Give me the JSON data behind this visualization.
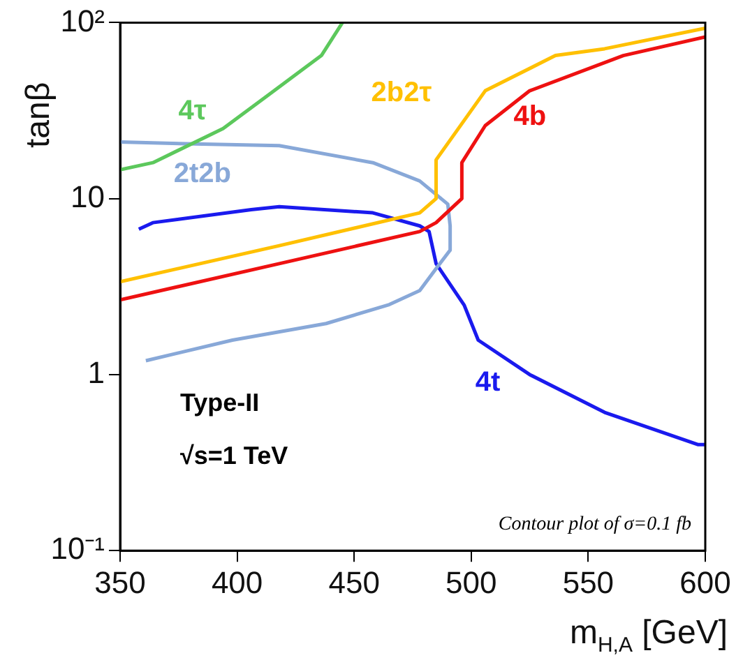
{
  "chart_data": {
    "type": "line",
    "xlabel": "m$_{H,A}$ [GeV]",
    "ylabel": "tanβ",
    "log": "y",
    "xlim": [
      350,
      600
    ],
    "ylim": [
      0.1,
      100
    ],
    "xticks": [
      350,
      400,
      450,
      500,
      550,
      600
    ],
    "yticks": [
      {
        "value": 0.1,
        "label": "10⁻¹"
      },
      1,
      10,
      {
        "value": 100,
        "label": "10²"
      }
    ],
    "grid": false,
    "legend": false,
    "marker": "none",
    "line_style": "solid",
    "annotations": [
      "Type-II",
      "√s=1 TeV",
      "Contour plot of σ=0.1 fb"
    ],
    "series": [
      {
        "name": "4τ",
        "color": "#5cc85c",
        "x": [
          350,
          364,
          394,
          412,
          436,
          445
        ],
        "values": [
          14.6,
          16,
          25,
          37.6,
          65,
          100
        ]
      },
      {
        "name": "2b2τ",
        "color": "#ffc000",
        "x": [
          350,
          418,
          478,
          485,
          485,
          506,
          536,
          557,
          600
        ],
        "values": [
          3.37,
          5.4,
          8.3,
          10,
          16.6,
          41,
          65,
          71,
          93
        ]
      },
      {
        "name": "4b",
        "color": "#ee1111",
        "x": [
          350,
          418,
          478,
          485,
          496,
          496,
          506,
          525,
          565,
          600
        ],
        "values": [
          2.66,
          4.27,
          6.5,
          7.3,
          10,
          16,
          26,
          41,
          65,
          83
        ]
      },
      {
        "name": "2t2b",
        "color": "#88a8d8",
        "x": [
          350,
          378,
          418,
          458,
          478,
          490,
          491,
          491,
          485,
          478,
          465,
          438,
          398,
          361
        ],
        "values": [
          21,
          20.5,
          20,
          16,
          12.6,
          9.3,
          7,
          5.1,
          4,
          3,
          2.5,
          1.95,
          1.57,
          1.2
        ]
      },
      {
        "name": "4t",
        "color": "#1a1aee",
        "x": [
          358,
          364,
          406,
          418,
          458,
          478,
          482,
          485,
          497,
          503,
          525,
          557,
          597,
          600
        ],
        "values": [
          6.7,
          7.3,
          8.65,
          9,
          8.3,
          7,
          6.5,
          4.27,
          2.48,
          1.57,
          1,
          0.61,
          0.4,
          0.4
        ]
      }
    ]
  }
}
